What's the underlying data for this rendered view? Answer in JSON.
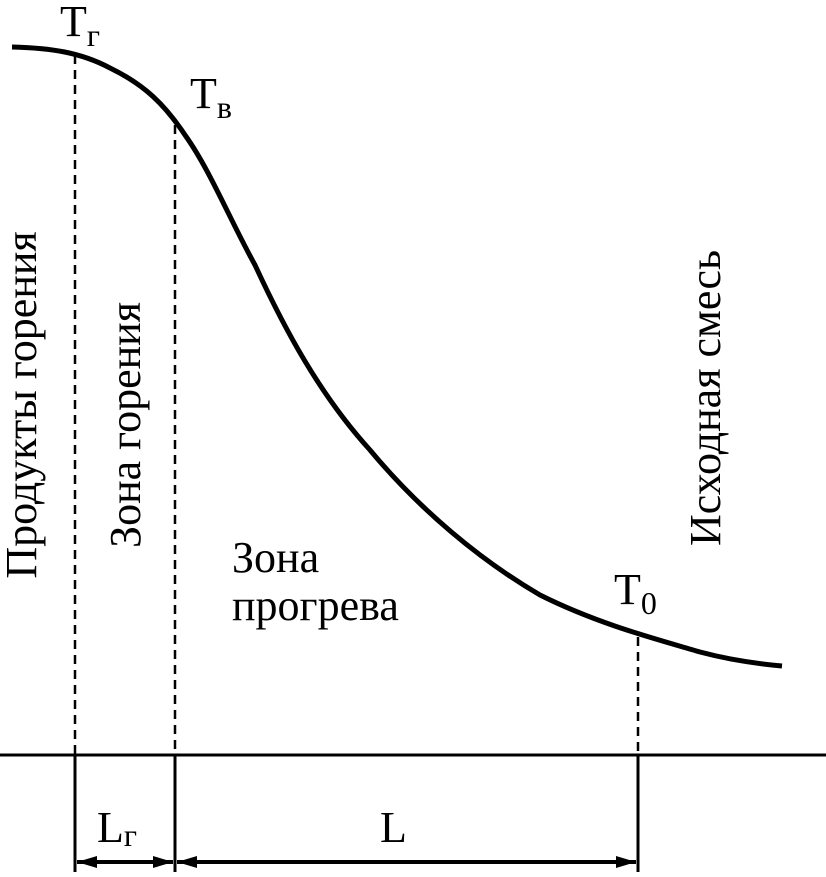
{
  "labels": {
    "t_g": {
      "main": "T",
      "sub": "г"
    },
    "t_v": {
      "main": "T",
      "sub": "в"
    },
    "t_0": {
      "main": "T",
      "sub": "0"
    },
    "l_g": {
      "main": "L",
      "sub": "г"
    },
    "l": "L"
  },
  "zones": {
    "products": "Продукты горения",
    "combustion": "Зона горения",
    "preheat": [
      "Зона",
      "прогрева"
    ],
    "initial": "Исходная смесь"
  }
}
